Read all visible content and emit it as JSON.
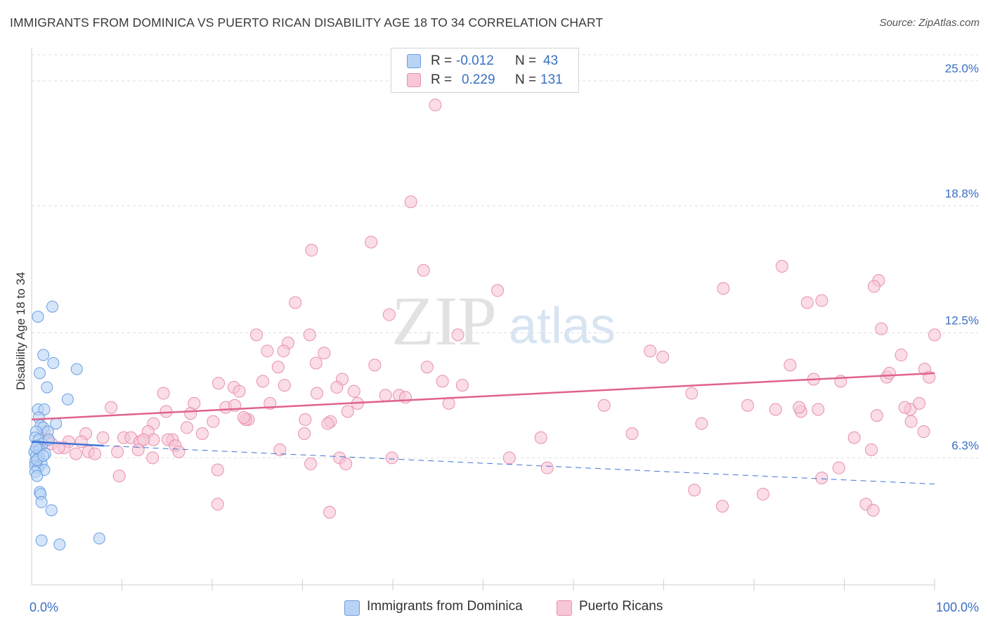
{
  "title": "IMMIGRANTS FROM DOMINICA VS PUERTO RICAN DISABILITY AGE 18 TO 34 CORRELATION CHART",
  "source": "Source: ZipAtlas.com",
  "watermark": {
    "zip": "ZIP",
    "atlas": "atlas"
  },
  "colors": {
    "blue_fill": "#b9d3f5",
    "blue_stroke": "#6a9ee0",
    "blue_line": "#3e74d4",
    "pink_fill": "#f7c7d6",
    "pink_stroke": "#e88fae",
    "pink_line": "#e0628e",
    "tick_label": "#3a6fc4",
    "grid": "#dedede"
  },
  "legend": {
    "r_label": "R =",
    "n_label": "N =",
    "rows": [
      {
        "r": "-0.012",
        "n": "43"
      },
      {
        "r": "0.229",
        "n": "131"
      }
    ]
  },
  "chart_data": {
    "type": "scatter",
    "xlabel": "",
    "ylabel": "Disability Age 18 to 34",
    "xlim": [
      0,
      100
    ],
    "ylim": [
      0,
      26.5
    ],
    "x_tick_labels": [
      {
        "value": 0,
        "label": "0.0%"
      },
      {
        "value": 100,
        "label": "100.0%"
      }
    ],
    "y_ticks": [
      {
        "value": 6.3,
        "label": "6.3%"
      },
      {
        "value": 12.5,
        "label": "12.5%"
      },
      {
        "value": 18.8,
        "label": "18.8%"
      },
      {
        "value": 25.0,
        "label": "25.0%"
      }
    ],
    "grid": "horizontal dashed",
    "legend_position": "top-center",
    "series": [
      {
        "name": "Immigrants from Dominica",
        "trend": {
          "x": [
            0,
            8
          ],
          "y": [
            7.1,
            6.9
          ],
          "dashed_to": [
            100,
            5.0
          ]
        },
        "points": [
          [
            0.7,
            13.3
          ],
          [
            2.3,
            13.8
          ],
          [
            1.3,
            11.4
          ],
          [
            2.4,
            11.0
          ],
          [
            0.9,
            10.5
          ],
          [
            5.0,
            10.7
          ],
          [
            1.7,
            9.8
          ],
          [
            4.0,
            9.2
          ],
          [
            0.7,
            8.7
          ],
          [
            1.4,
            8.7
          ],
          [
            0.8,
            8.3
          ],
          [
            1.0,
            7.9
          ],
          [
            1.3,
            7.8
          ],
          [
            1.8,
            7.6
          ],
          [
            2.7,
            8.0
          ],
          [
            0.5,
            7.6
          ],
          [
            0.4,
            7.3
          ],
          [
            0.8,
            7.2
          ],
          [
            1.2,
            7.0
          ],
          [
            0.6,
            6.9
          ],
          [
            0.3,
            6.6
          ],
          [
            0.9,
            6.7
          ],
          [
            1.5,
            6.5
          ],
          [
            0.5,
            6.4
          ],
          [
            0.8,
            6.3
          ],
          [
            0.4,
            6.1
          ],
          [
            1.1,
            6.0
          ],
          [
            0.4,
            5.9
          ],
          [
            0.7,
            5.8
          ],
          [
            1.4,
            5.7
          ],
          [
            0.4,
            5.6
          ],
          [
            0.6,
            5.4
          ],
          [
            0.9,
            4.6
          ],
          [
            1.0,
            4.5
          ],
          [
            1.1,
            4.1
          ],
          [
            2.2,
            3.7
          ],
          [
            1.1,
            2.2
          ],
          [
            3.1,
            2.0
          ],
          [
            7.5,
            2.3
          ],
          [
            0.5,
            6.8
          ],
          [
            1.9,
            7.2
          ],
          [
            0.6,
            6.2
          ],
          [
            1.3,
            6.4
          ]
        ]
      },
      {
        "name": "Puerto Ricans",
        "trend": {
          "x": [
            0,
            100
          ],
          "y": [
            8.2,
            10.5
          ]
        },
        "points": [
          [
            44.7,
            23.8
          ],
          [
            42.0,
            19.0
          ],
          [
            37.6,
            17.0
          ],
          [
            31.0,
            16.6
          ],
          [
            43.4,
            15.6
          ],
          [
            51.6,
            14.6
          ],
          [
            83.1,
            15.8
          ],
          [
            76.6,
            14.7
          ],
          [
            93.8,
            15.1
          ],
          [
            93.3,
            14.8
          ],
          [
            85.9,
            14.0
          ],
          [
            87.5,
            14.1
          ],
          [
            29.2,
            14.0
          ],
          [
            39.6,
            13.4
          ],
          [
            94.1,
            12.7
          ],
          [
            100.0,
            12.4
          ],
          [
            47.2,
            12.4
          ],
          [
            24.9,
            12.4
          ],
          [
            30.8,
            12.4
          ],
          [
            28.4,
            12.0
          ],
          [
            26.1,
            11.6
          ],
          [
            32.4,
            11.5
          ],
          [
            27.9,
            11.6
          ],
          [
            68.5,
            11.6
          ],
          [
            69.9,
            11.3
          ],
          [
            96.3,
            11.4
          ],
          [
            98.9,
            10.7
          ],
          [
            84.0,
            10.9
          ],
          [
            31.5,
            11.0
          ],
          [
            38.0,
            10.9
          ],
          [
            27.3,
            10.8
          ],
          [
            43.8,
            10.8
          ],
          [
            34.4,
            10.2
          ],
          [
            25.6,
            10.1
          ],
          [
            28.0,
            9.9
          ],
          [
            20.7,
            10.0
          ],
          [
            22.4,
            9.8
          ],
          [
            45.5,
            10.1
          ],
          [
            47.7,
            9.9
          ],
          [
            33.8,
            9.8
          ],
          [
            35.7,
            9.6
          ],
          [
            23.0,
            9.6
          ],
          [
            31.6,
            9.5
          ],
          [
            39.2,
            9.4
          ],
          [
            40.7,
            9.4
          ],
          [
            41.4,
            9.3
          ],
          [
            14.6,
            9.5
          ],
          [
            73.1,
            9.5
          ],
          [
            86.6,
            10.2
          ],
          [
            89.6,
            10.1
          ],
          [
            94.7,
            10.3
          ],
          [
            99.4,
            10.3
          ],
          [
            95.0,
            10.5
          ],
          [
            18.0,
            9.0
          ],
          [
            21.5,
            8.8
          ],
          [
            22.5,
            8.9
          ],
          [
            26.4,
            9.0
          ],
          [
            46.2,
            9.0
          ],
          [
            36.1,
            9.0
          ],
          [
            8.8,
            8.8
          ],
          [
            14.9,
            8.6
          ],
          [
            17.6,
            8.5
          ],
          [
            35.0,
            8.6
          ],
          [
            24.0,
            8.2
          ],
          [
            23.7,
            8.2
          ],
          [
            20.1,
            8.1
          ],
          [
            33.1,
            8.1
          ],
          [
            30.3,
            8.2
          ],
          [
            13.5,
            8.0
          ],
          [
            23.5,
            8.3
          ],
          [
            32.8,
            8.0
          ],
          [
            63.4,
            8.9
          ],
          [
            87.1,
            8.7
          ],
          [
            97.3,
            8.7
          ],
          [
            96.7,
            8.8
          ],
          [
            82.4,
            8.7
          ],
          [
            98.3,
            9.0
          ],
          [
            85.2,
            8.6
          ],
          [
            85.0,
            8.8
          ],
          [
            93.6,
            8.4
          ],
          [
            97.4,
            8.1
          ],
          [
            74.2,
            8.0
          ],
          [
            79.3,
            8.9
          ],
          [
            56.4,
            7.3
          ],
          [
            66.5,
            7.5
          ],
          [
            91.1,
            7.3
          ],
          [
            98.8,
            7.6
          ],
          [
            12.9,
            7.6
          ],
          [
            10.2,
            7.3
          ],
          [
            6.0,
            7.5
          ],
          [
            13.5,
            7.2
          ],
          [
            17.2,
            7.8
          ],
          [
            18.9,
            7.5
          ],
          [
            30.2,
            7.5
          ],
          [
            11.0,
            7.3
          ],
          [
            12.0,
            7.1
          ],
          [
            12.4,
            7.2
          ],
          [
            15.6,
            7.2
          ],
          [
            15.1,
            7.2
          ],
          [
            4.1,
            7.1
          ],
          [
            3.6,
            6.8
          ],
          [
            5.5,
            7.1
          ],
          [
            7.9,
            7.3
          ],
          [
            11.8,
            6.7
          ],
          [
            9.5,
            6.6
          ],
          [
            13.4,
            6.3
          ],
          [
            15.9,
            6.9
          ],
          [
            16.3,
            6.6
          ],
          [
            27.5,
            6.7
          ],
          [
            6.3,
            6.6
          ],
          [
            7.0,
            6.5
          ],
          [
            4.9,
            6.5
          ],
          [
            1.4,
            7.6
          ],
          [
            1.8,
            7.2
          ],
          [
            2.2,
            7.0
          ],
          [
            3.0,
            6.8
          ],
          [
            0.8,
            6.8
          ],
          [
            34.1,
            6.3
          ],
          [
            34.8,
            6.0
          ],
          [
            30.9,
            6.0
          ],
          [
            39.9,
            6.3
          ],
          [
            52.9,
            6.3
          ],
          [
            93.0,
            6.7
          ],
          [
            89.4,
            5.8
          ],
          [
            57.1,
            5.8
          ],
          [
            20.6,
            5.7
          ],
          [
            9.7,
            5.4
          ],
          [
            73.4,
            4.7
          ],
          [
            87.5,
            5.3
          ],
          [
            81.0,
            4.5
          ],
          [
            92.4,
            4.0
          ],
          [
            93.2,
            3.7
          ],
          [
            76.5,
            3.9
          ],
          [
            20.6,
            4.0
          ],
          [
            33.0,
            3.6
          ]
        ]
      }
    ]
  }
}
